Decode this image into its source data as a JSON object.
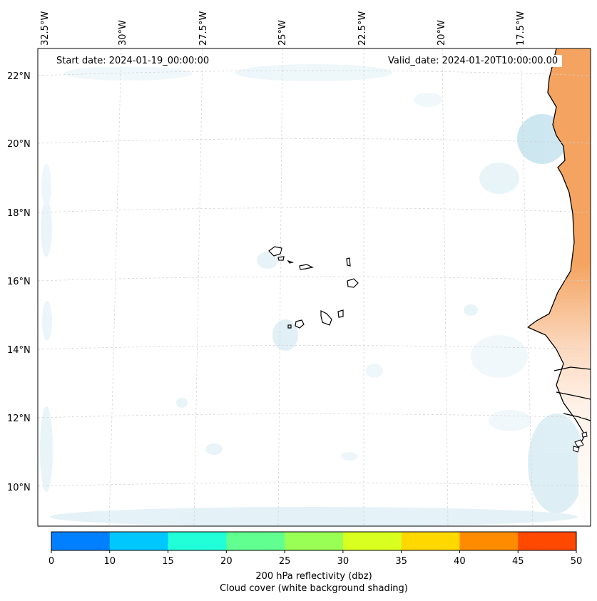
{
  "header": {
    "start_date": "Start date: 2024-01-19_00:00:00",
    "valid_date": "Valid_date: 2024-01-20T10:00:00.00"
  },
  "axes": {
    "lon_labels": [
      "32.5°W",
      "30°W",
      "27.5°W",
      "25°W",
      "22.5°W",
      "20°W",
      "17.5°W"
    ],
    "lat_labels": [
      "22°N",
      "20°N",
      "18°N",
      "16°N",
      "14°N",
      "12°N",
      "10°N"
    ]
  },
  "colorbar": {
    "label": "200 hPa reflectivity (dbz)",
    "sublabel": "Cloud cover (white background shading)",
    "ticks": [
      "0",
      "10",
      "15",
      "20",
      "25",
      "30",
      "35",
      "40",
      "45",
      "50"
    ],
    "colors": [
      "#0080ff",
      "#00c8ff",
      "#20ffd8",
      "#60ff90",
      "#99ff55",
      "#d8ff20",
      "#ffd800",
      "#ff8c00",
      "#ff4800"
    ]
  },
  "colors": {
    "land": "#f4a460",
    "cloud": "#add8e6",
    "coast": "#000000",
    "grid": "#cccccc"
  }
}
